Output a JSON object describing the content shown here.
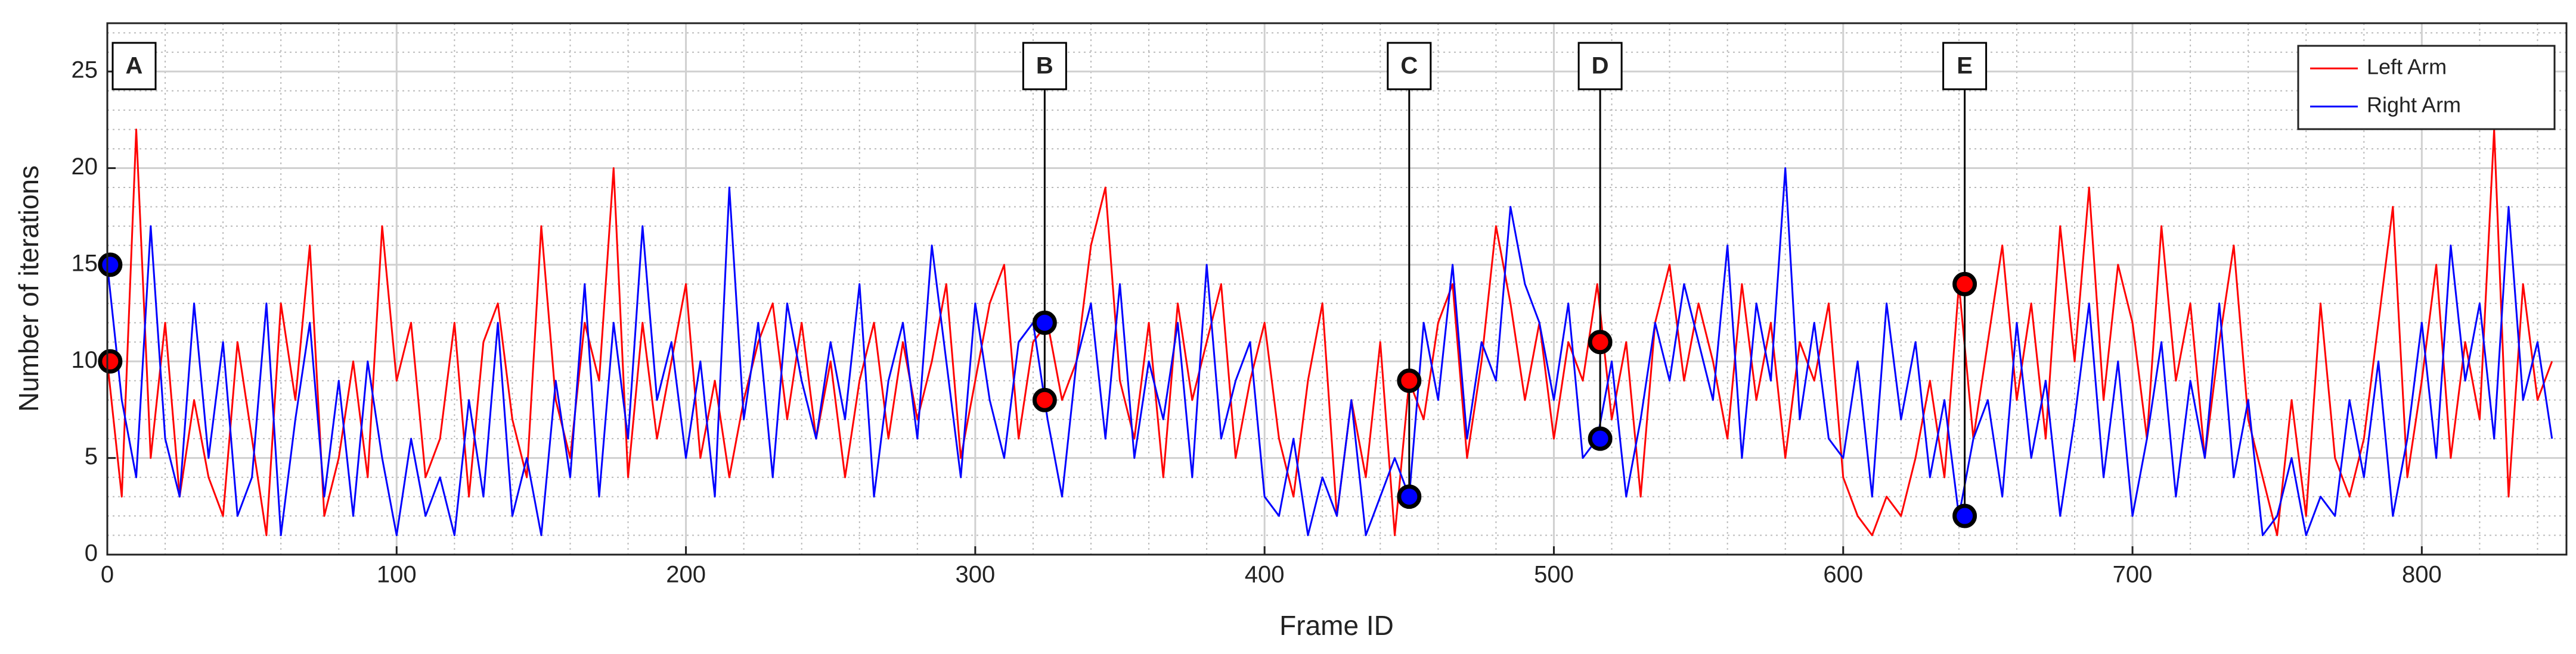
{
  "chart_data": {
    "type": "line",
    "xlabel": "Frame ID",
    "ylabel": "Number of iterations",
    "xlim": [
      0,
      850
    ],
    "ylim": [
      0,
      27.5
    ],
    "xticks": [
      0,
      100,
      200,
      300,
      400,
      500,
      600,
      700,
      800
    ],
    "yticks": [
      0,
      5,
      10,
      15,
      20,
      25
    ],
    "grid": true,
    "minor_grid": true,
    "legend": "upper right",
    "x": [
      0,
      5,
      10,
      15,
      20,
      25,
      30,
      35,
      40,
      45,
      50,
      55,
      60,
      65,
      70,
      75,
      80,
      85,
      90,
      95,
      100,
      105,
      110,
      115,
      120,
      125,
      130,
      135,
      140,
      145,
      150,
      155,
      160,
      165,
      170,
      175,
      180,
      185,
      190,
      195,
      200,
      205,
      210,
      215,
      220,
      225,
      230,
      235,
      240,
      245,
      250,
      255,
      260,
      265,
      270,
      275,
      280,
      285,
      290,
      295,
      300,
      305,
      310,
      315,
      320,
      325,
      330,
      335,
      340,
      345,
      350,
      355,
      360,
      365,
      370,
      375,
      380,
      385,
      390,
      395,
      400,
      405,
      410,
      415,
      420,
      425,
      430,
      435,
      440,
      445,
      450,
      455,
      460,
      465,
      470,
      475,
      480,
      485,
      490,
      495,
      500,
      505,
      510,
      515,
      520,
      525,
      530,
      535,
      540,
      545,
      550,
      555,
      560,
      565,
      570,
      575,
      580,
      585,
      590,
      595,
      600,
      605,
      610,
      615,
      620,
      625,
      630,
      635,
      640,
      645,
      650,
      655,
      660,
      665,
      670,
      675,
      680,
      685,
      690,
      695,
      700,
      705,
      710,
      715,
      720,
      725,
      730,
      735,
      740,
      745,
      750,
      755,
      760,
      765,
      770,
      775,
      780,
      785,
      790,
      795,
      800,
      805,
      810,
      815,
      820,
      825,
      830,
      835,
      840,
      845
    ],
    "series": [
      {
        "name": "Left Arm",
        "color": "#ff0000",
        "values": [
          10,
          3,
          22,
          5,
          12,
          3,
          8,
          4,
          2,
          11,
          6,
          1,
          13,
          8,
          16,
          2,
          5,
          10,
          4,
          17,
          9,
          12,
          4,
          6,
          12,
          3,
          11,
          13,
          7,
          4,
          17,
          8,
          5,
          12,
          9,
          20,
          4,
          12,
          6,
          10,
          14,
          5,
          9,
          4,
          8,
          11,
          13,
          7,
          12,
          6,
          10,
          4,
          9,
          12,
          6,
          11,
          7,
          10,
          14,
          5,
          9,
          13,
          15,
          6,
          11,
          12,
          8,
          10,
          16,
          19,
          9,
          6,
          12,
          4,
          13,
          8,
          11,
          14,
          5,
          9,
          12,
          6,
          3,
          9,
          13,
          2,
          8,
          4,
          11,
          1,
          9,
          7,
          12,
          14,
          5,
          10,
          17,
          13,
          8,
          12,
          6,
          11,
          9,
          14,
          7,
          11,
          3,
          12,
          15,
          9,
          13,
          10,
          6,
          14,
          8,
          12,
          5,
          11,
          9,
          13,
          4,
          2,
          1,
          3,
          2,
          5,
          9,
          4,
          14,
          6,
          11,
          16,
          8,
          13,
          6,
          17,
          10,
          19,
          8,
          15,
          12,
          6,
          17,
          9,
          13,
          5,
          11,
          16,
          7,
          4,
          1,
          8,
          2,
          13,
          5,
          3,
          6,
          12,
          18,
          4,
          9,
          15,
          5,
          11,
          7,
          22,
          3,
          14,
          8,
          10
        ]
      },
      {
        "name": "Right Arm",
        "color": "#0000ff",
        "values": [
          15,
          8,
          4,
          17,
          6,
          3,
          13,
          5,
          11,
          2,
          4,
          13,
          1,
          7,
          12,
          3,
          9,
          2,
          10,
          5,
          1,
          6,
          2,
          4,
          1,
          8,
          3,
          12,
          2,
          5,
          1,
          9,
          4,
          14,
          3,
          12,
          6,
          17,
          8,
          11,
          5,
          10,
          3,
          19,
          7,
          12,
          4,
          13,
          9,
          6,
          11,
          7,
          14,
          3,
          9,
          12,
          6,
          16,
          10,
          4,
          13,
          8,
          5,
          11,
          12,
          7,
          3,
          10,
          13,
          6,
          14,
          5,
          10,
          7,
          12,
          4,
          15,
          6,
          9,
          11,
          3,
          2,
          6,
          1,
          4,
          2,
          8,
          1,
          3,
          5,
          3,
          12,
          8,
          15,
          6,
          11,
          9,
          18,
          14,
          12,
          8,
          13,
          5,
          6,
          10,
          3,
          7,
          12,
          9,
          14,
          11,
          8,
          16,
          5,
          13,
          9,
          20,
          7,
          12,
          6,
          5,
          10,
          3,
          13,
          7,
          11,
          4,
          8,
          2,
          6,
          8,
          3,
          12,
          5,
          9,
          2,
          7,
          13,
          4,
          10,
          2,
          6,
          11,
          3,
          9,
          5,
          13,
          4,
          8,
          1,
          2,
          5,
          1,
          3,
          2,
          8,
          4,
          10,
          2,
          6,
          12,
          5,
          16,
          9,
          13,
          6,
          18,
          8,
          11,
          6
        ]
      }
    ],
    "annotations": [
      {
        "label": "A",
        "x": 1,
        "left": 10,
        "right": 15
      },
      {
        "label": "B",
        "x": 324,
        "left": 8,
        "right": 12
      },
      {
        "label": "C",
        "x": 450,
        "left": 9,
        "right": 3
      },
      {
        "label": "D",
        "x": 516,
        "left": 11,
        "right": 6
      },
      {
        "label": "E",
        "x": 642,
        "left": 14,
        "right": 2
      }
    ]
  }
}
